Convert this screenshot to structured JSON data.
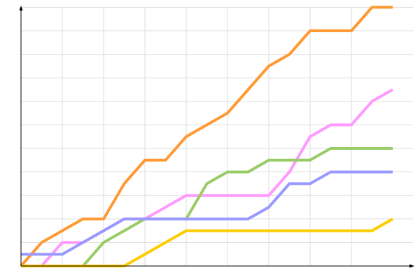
{
  "chart_data": {
    "type": "line",
    "title": "",
    "xlabel": "",
    "ylabel": "",
    "x": [
      0,
      1,
      2,
      3,
      4,
      5,
      6,
      7,
      8,
      9,
      10,
      11,
      12,
      13,
      14,
      15,
      16,
      17,
      18
    ],
    "xlim": [
      0,
      19
    ],
    "ylim": [
      0,
      11
    ],
    "grid": true,
    "legend": "none",
    "series": [
      {
        "color": "#ff9933",
        "values": [
          0,
          1,
          1.5,
          2,
          2,
          3.5,
          4.5,
          4.5,
          5.5,
          6,
          6.5,
          7.5,
          8.5,
          9,
          10,
          10,
          10,
          11,
          11
        ]
      },
      {
        "color": "#ff99ff",
        "values": [
          0,
          0,
          1,
          1,
          1.5,
          2,
          2,
          2.5,
          3,
          3,
          3,
          3,
          3,
          4,
          5.5,
          6,
          6,
          7,
          7.5
        ]
      },
      {
        "color": "#99cc66",
        "values": [
          0,
          0,
          0,
          0,
          1,
          1.5,
          2,
          2,
          2,
          3.5,
          4,
          4,
          4.5,
          4.5,
          4.5,
          5,
          5,
          5,
          5
        ]
      },
      {
        "color": "#9999ff",
        "values": [
          0.5,
          0.5,
          0.5,
          1,
          1.5,
          2,
          2,
          2,
          2,
          2,
          2,
          2,
          2.5,
          3.5,
          3.5,
          4,
          4,
          4,
          4
        ]
      },
      {
        "color": "#ffcc00",
        "values": [
          0,
          0,
          0,
          0,
          0,
          0,
          0.5,
          1,
          1.5,
          1.5,
          1.5,
          1.5,
          1.5,
          1.5,
          1.5,
          1.5,
          1.5,
          1.5,
          2
        ]
      }
    ]
  }
}
